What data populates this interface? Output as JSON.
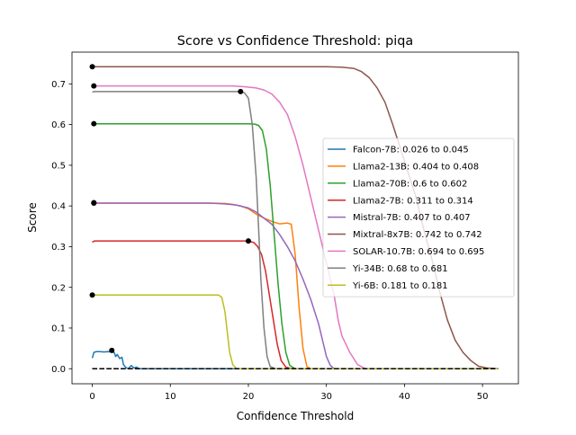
{
  "chart_data": {
    "type": "line",
    "title": "Score vs Confidence Threshold: piqa",
    "xlabel": "Confidence Threshold",
    "ylabel": "Score",
    "xlim": [
      -2.6,
      54.6
    ],
    "ylim": [
      -0.037,
      0.778
    ],
    "xticks": [
      0,
      10,
      20,
      30,
      40,
      50
    ],
    "yticks": [
      0.0,
      0.1,
      0.2,
      0.3,
      0.4,
      0.5,
      0.6,
      0.7
    ],
    "xtick_labels": [
      "0",
      "10",
      "20",
      "30",
      "40",
      "50"
    ],
    "ytick_labels": [
      "0.0",
      "0.1",
      "0.2",
      "0.3",
      "0.4",
      "0.5",
      "0.6",
      "0.7"
    ],
    "grid": false,
    "legend_position": "center-right",
    "baseline": {
      "y": 0.0,
      "x": [
        0,
        52
      ],
      "style": "dashed",
      "color": "#000000"
    },
    "series": [
      {
        "name": "Falcon-7B: 0.026 to 0.045",
        "color": "#1f77b4",
        "marker": [
          2.5,
          0.045
        ],
        "points": [
          [
            0,
            0.026
          ],
          [
            0.2,
            0.04
          ],
          [
            0.5,
            0.042
          ],
          [
            1,
            0.042
          ],
          [
            1.5,
            0.041
          ],
          [
            2,
            0.042
          ],
          [
            2.5,
            0.041
          ],
          [
            2.8,
            0.04
          ],
          [
            3.0,
            0.03
          ],
          [
            3.2,
            0.035
          ],
          [
            3.5,
            0.025
          ],
          [
            3.8,
            0.028
          ],
          [
            4.0,
            0.01
          ],
          [
            4.3,
            0.003
          ],
          [
            4.6,
            0.0
          ],
          [
            5,
            0.008
          ],
          [
            5.3,
            0.002
          ],
          [
            5.7,
            0.004
          ],
          [
            6,
            0.0
          ],
          [
            52,
            0.0
          ]
        ]
      },
      {
        "name": "Llama2-13B: 0.404 to 0.408",
        "color": "#ff7f0e",
        "marker": [
          0.2,
          0.408
        ],
        "points": [
          [
            0,
            0.404
          ],
          [
            0.3,
            0.407
          ],
          [
            5,
            0.407
          ],
          [
            10,
            0.407
          ],
          [
            15,
            0.407
          ],
          [
            17,
            0.406
          ],
          [
            18,
            0.404
          ],
          [
            19,
            0.4
          ],
          [
            20,
            0.393
          ],
          [
            21,
            0.38
          ],
          [
            22,
            0.37
          ],
          [
            23,
            0.362
          ],
          [
            24,
            0.356
          ],
          [
            25,
            0.358
          ],
          [
            25.5,
            0.355
          ],
          [
            26,
            0.28
          ],
          [
            26.5,
            0.15
          ],
          [
            27,
            0.05
          ],
          [
            27.5,
            0.005
          ],
          [
            28,
            0.0
          ],
          [
            52,
            0.0
          ]
        ]
      },
      {
        "name": "Llama2-70B: 0.6 to 0.602",
        "color": "#2ca02c",
        "marker": [
          0.2,
          0.602
        ],
        "points": [
          [
            0,
            0.6
          ],
          [
            0.3,
            0.602
          ],
          [
            10,
            0.602
          ],
          [
            20,
            0.602
          ],
          [
            20.8,
            0.601
          ],
          [
            21.3,
            0.598
          ],
          [
            21.8,
            0.585
          ],
          [
            22.3,
            0.54
          ],
          [
            22.8,
            0.45
          ],
          [
            23.3,
            0.33
          ],
          [
            23.8,
            0.21
          ],
          [
            24.3,
            0.11
          ],
          [
            24.8,
            0.04
          ],
          [
            25.3,
            0.008
          ],
          [
            26,
            0.0
          ],
          [
            52,
            0.0
          ]
        ]
      },
      {
        "name": "Llama2-7B: 0.311 to 0.314",
        "color": "#d62728",
        "marker": [
          20,
          0.314
        ],
        "points": [
          [
            0,
            0.311
          ],
          [
            0.3,
            0.314
          ],
          [
            10,
            0.314
          ],
          [
            20,
            0.314
          ],
          [
            20.7,
            0.31
          ],
          [
            21.2,
            0.3
          ],
          [
            21.7,
            0.28
          ],
          [
            22.2,
            0.24
          ],
          [
            22.7,
            0.18
          ],
          [
            23.2,
            0.12
          ],
          [
            23.7,
            0.06
          ],
          [
            24.2,
            0.02
          ],
          [
            24.8,
            0.004
          ],
          [
            25.5,
            0.0
          ],
          [
            52,
            0.0
          ]
        ]
      },
      {
        "name": "Mistral-7B: 0.407 to 0.407",
        "color": "#9467bd",
        "marker": [
          0.2,
          0.407
        ],
        "points": [
          [
            0,
            0.407
          ],
          [
            10,
            0.407
          ],
          [
            15,
            0.407
          ],
          [
            17,
            0.405
          ],
          [
            18.5,
            0.402
          ],
          [
            20,
            0.395
          ],
          [
            21,
            0.385
          ],
          [
            22,
            0.37
          ],
          [
            23,
            0.355
          ],
          [
            24,
            0.33
          ],
          [
            25,
            0.3
          ],
          [
            26,
            0.265
          ],
          [
            27,
            0.22
          ],
          [
            28,
            0.17
          ],
          [
            29,
            0.11
          ],
          [
            29.5,
            0.07
          ],
          [
            30,
            0.03
          ],
          [
            30.5,
            0.008
          ],
          [
            31,
            0.0
          ],
          [
            52,
            0.0
          ]
        ]
      },
      {
        "name": "Mixtral-8x7B: 0.742 to 0.742",
        "color": "#8c564b",
        "marker": [
          0,
          0.742
        ],
        "points": [
          [
            0,
            0.742
          ],
          [
            10,
            0.742
          ],
          [
            20,
            0.742
          ],
          [
            30,
            0.742
          ],
          [
            32,
            0.741
          ],
          [
            33.5,
            0.738
          ],
          [
            34.5,
            0.73
          ],
          [
            35.5,
            0.715
          ],
          [
            36.5,
            0.69
          ],
          [
            37.5,
            0.655
          ],
          [
            38.5,
            0.6
          ],
          [
            39.5,
            0.54
          ],
          [
            40.5,
            0.48
          ],
          [
            41.5,
            0.42
          ],
          [
            42.5,
            0.34
          ],
          [
            43.5,
            0.27
          ],
          [
            44.5,
            0.19
          ],
          [
            45.5,
            0.12
          ],
          [
            46.5,
            0.07
          ],
          [
            47.5,
            0.04
          ],
          [
            48.5,
            0.02
          ],
          [
            49.5,
            0.006
          ],
          [
            50.5,
            0.002
          ],
          [
            52,
            0.0
          ]
        ]
      },
      {
        "name": "SOLAR-10.7B: 0.694 to 0.695",
        "color": "#e377c2",
        "marker": [
          0.2,
          0.695
        ],
        "points": [
          [
            0,
            0.694
          ],
          [
            0.3,
            0.695
          ],
          [
            10,
            0.695
          ],
          [
            18,
            0.695
          ],
          [
            19.5,
            0.693
          ],
          [
            21,
            0.69
          ],
          [
            22,
            0.685
          ],
          [
            23,
            0.675
          ],
          [
            24,
            0.655
          ],
          [
            25,
            0.625
          ],
          [
            26,
            0.57
          ],
          [
            27,
            0.5
          ],
          [
            28,
            0.42
          ],
          [
            29,
            0.34
          ],
          [
            30,
            0.26
          ],
          [
            31,
            0.18
          ],
          [
            31.5,
            0.12
          ],
          [
            32,
            0.08
          ],
          [
            33,
            0.04
          ],
          [
            34,
            0.01
          ],
          [
            35,
            0.0
          ],
          [
            52,
            0.0
          ]
        ]
      },
      {
        "name": "Yi-34B: 0.68 to 0.681",
        "color": "#7f7f7f",
        "marker": [
          19,
          0.681
        ],
        "points": [
          [
            0,
            0.68
          ],
          [
            0.3,
            0.681
          ],
          [
            10,
            0.681
          ],
          [
            19,
            0.681
          ],
          [
            19.5,
            0.678
          ],
          [
            20,
            0.665
          ],
          [
            20.5,
            0.6
          ],
          [
            21,
            0.47
          ],
          [
            21.3,
            0.35
          ],
          [
            21.6,
            0.22
          ],
          [
            22,
            0.1
          ],
          [
            22.4,
            0.03
          ],
          [
            22.8,
            0.005
          ],
          [
            23.5,
            0.0
          ],
          [
            52,
            0.0
          ]
        ]
      },
      {
        "name": "Yi-6B: 0.181 to 0.181",
        "color": "#bcbd22",
        "marker": [
          0,
          0.181
        ],
        "points": [
          [
            0,
            0.181
          ],
          [
            10,
            0.181
          ],
          [
            16.2,
            0.181
          ],
          [
            16.6,
            0.175
          ],
          [
            17,
            0.14
          ],
          [
            17.3,
            0.09
          ],
          [
            17.6,
            0.04
          ],
          [
            18,
            0.01
          ],
          [
            18.5,
            0.0
          ],
          [
            52,
            0.0
          ]
        ]
      }
    ]
  }
}
